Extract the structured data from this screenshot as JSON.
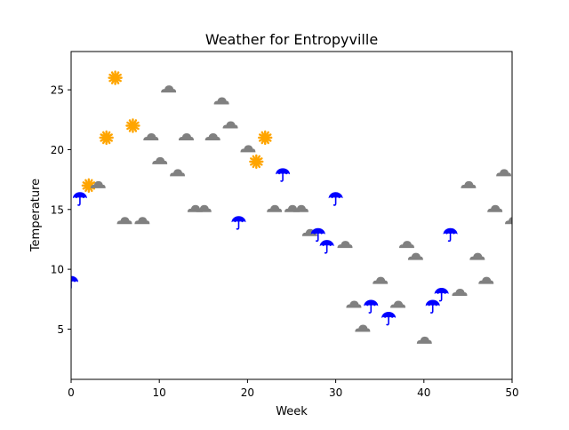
{
  "chart_data": {
    "type": "scatter",
    "title": "Weather for Entropyville",
    "xlabel": "Week",
    "ylabel": "Temperature",
    "xlim": [
      0,
      50
    ],
    "ylim": [
      0.8,
      28.2
    ],
    "xticks": [
      0,
      10,
      20,
      30,
      40,
      50
    ],
    "yticks": [
      5,
      10,
      15,
      20,
      25
    ],
    "grid": false,
    "legend": "none",
    "marker_colors": {
      "sun": "#ffa500",
      "rain": "#0000ff",
      "cloud": "#808080"
    },
    "marker_icons": {
      "sun": "sun-icon",
      "rain": "umbrella-icon",
      "cloud": "cloud-icon"
    },
    "points": [
      {
        "x": 0,
        "y": 9,
        "weather": "rain"
      },
      {
        "x": 1,
        "y": 16,
        "weather": "rain"
      },
      {
        "x": 2,
        "y": 17,
        "weather": "sun"
      },
      {
        "x": 3,
        "y": 17,
        "weather": "cloud"
      },
      {
        "x": 4,
        "y": 21,
        "weather": "sun"
      },
      {
        "x": 5,
        "y": 26,
        "weather": "sun"
      },
      {
        "x": 6,
        "y": 14,
        "weather": "cloud"
      },
      {
        "x": 7,
        "y": 22,
        "weather": "sun"
      },
      {
        "x": 8,
        "y": 14,
        "weather": "cloud"
      },
      {
        "x": 9,
        "y": 21,
        "weather": "cloud"
      },
      {
        "x": 10,
        "y": 19,
        "weather": "cloud"
      },
      {
        "x": 11,
        "y": 25,
        "weather": "cloud"
      },
      {
        "x": 12,
        "y": 18,
        "weather": "cloud"
      },
      {
        "x": 13,
        "y": 21,
        "weather": "cloud"
      },
      {
        "x": 14,
        "y": 15,
        "weather": "cloud"
      },
      {
        "x": 15,
        "y": 15,
        "weather": "cloud"
      },
      {
        "x": 16,
        "y": 21,
        "weather": "cloud"
      },
      {
        "x": 17,
        "y": 24,
        "weather": "cloud"
      },
      {
        "x": 18,
        "y": 22,
        "weather": "cloud"
      },
      {
        "x": 19,
        "y": 14,
        "weather": "rain"
      },
      {
        "x": 20,
        "y": 20,
        "weather": "cloud"
      },
      {
        "x": 21,
        "y": 19,
        "weather": "sun"
      },
      {
        "x": 22,
        "y": 21,
        "weather": "sun"
      },
      {
        "x": 23,
        "y": 15,
        "weather": "cloud"
      },
      {
        "x": 24,
        "y": 18,
        "weather": "rain"
      },
      {
        "x": 25,
        "y": 15,
        "weather": "cloud"
      },
      {
        "x": 26,
        "y": 15,
        "weather": "cloud"
      },
      {
        "x": 27,
        "y": 13,
        "weather": "cloud"
      },
      {
        "x": 28,
        "y": 13,
        "weather": "rain"
      },
      {
        "x": 29,
        "y": 12,
        "weather": "rain"
      },
      {
        "x": 30,
        "y": 16,
        "weather": "rain"
      },
      {
        "x": 31,
        "y": 12,
        "weather": "cloud"
      },
      {
        "x": 32,
        "y": 7,
        "weather": "cloud"
      },
      {
        "x": 33,
        "y": 5,
        "weather": "cloud"
      },
      {
        "x": 34,
        "y": 7,
        "weather": "rain"
      },
      {
        "x": 35,
        "y": 9,
        "weather": "cloud"
      },
      {
        "x": 36,
        "y": 6,
        "weather": "rain"
      },
      {
        "x": 37,
        "y": 7,
        "weather": "cloud"
      },
      {
        "x": 38,
        "y": 12,
        "weather": "cloud"
      },
      {
        "x": 39,
        "y": 11,
        "weather": "cloud"
      },
      {
        "x": 40,
        "y": 4,
        "weather": "cloud"
      },
      {
        "x": 41,
        "y": 7,
        "weather": "rain"
      },
      {
        "x": 42,
        "y": 8,
        "weather": "rain"
      },
      {
        "x": 43,
        "y": 13,
        "weather": "rain"
      },
      {
        "x": 44,
        "y": 8,
        "weather": "cloud"
      },
      {
        "x": 45,
        "y": 17,
        "weather": "cloud"
      },
      {
        "x": 46,
        "y": 11,
        "weather": "cloud"
      },
      {
        "x": 47,
        "y": 9,
        "weather": "cloud"
      },
      {
        "x": 48,
        "y": 15,
        "weather": "cloud"
      },
      {
        "x": 49,
        "y": 18,
        "weather": "cloud"
      },
      {
        "x": 50,
        "y": 14,
        "weather": "cloud"
      }
    ]
  }
}
